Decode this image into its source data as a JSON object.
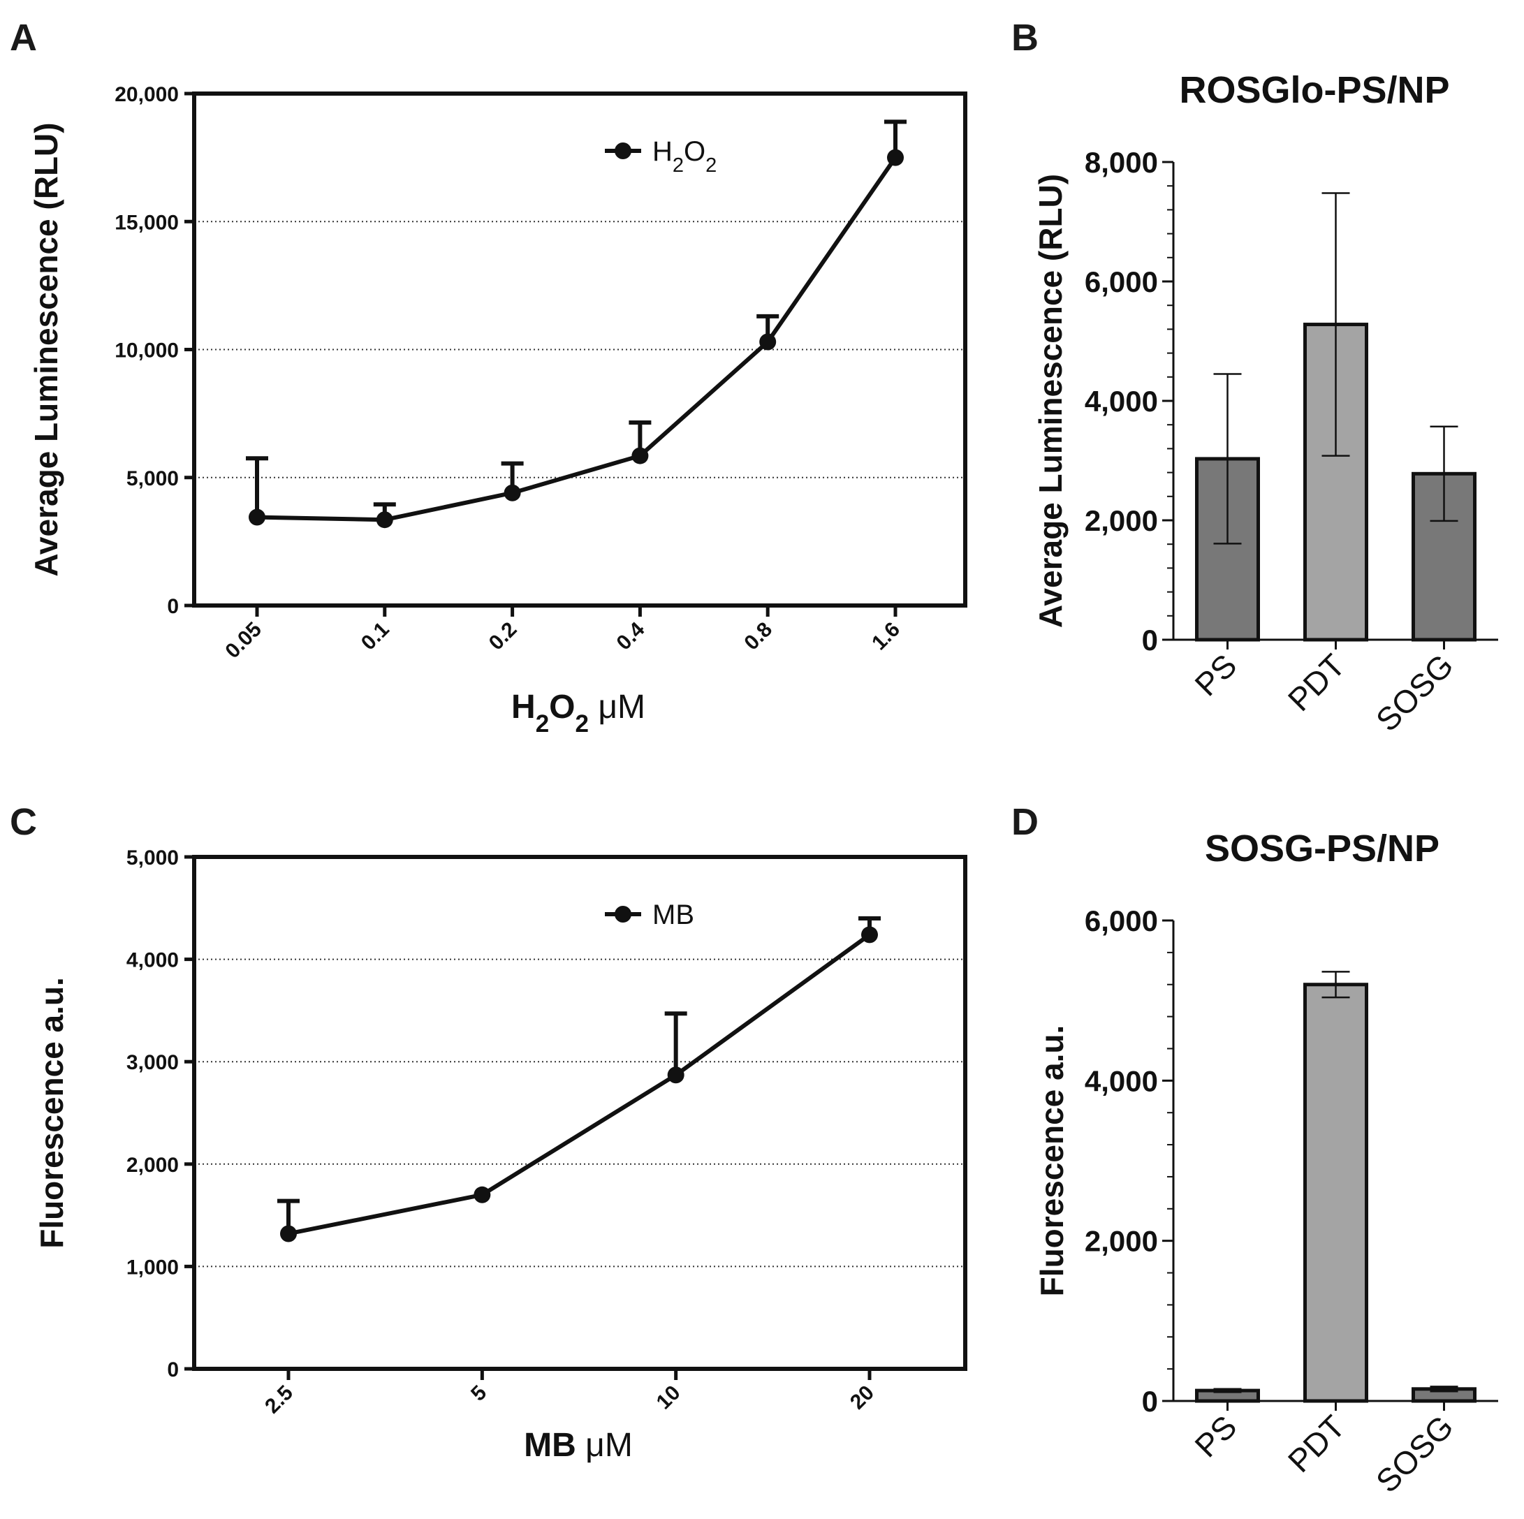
{
  "chart_data": [
    {
      "panel": "A",
      "type": "line",
      "title": "",
      "xlabel": {
        "main": "H",
        "sub1": "2",
        "mid": "O",
        "sub2": "2",
        "unit": " μM"
      },
      "ylabel": "Average Luminescence (RLU)",
      "categories": [
        "0.05",
        "0.1",
        "0.2",
        "0.4",
        "0.8",
        "1.6"
      ],
      "yticks": [
        "0",
        "5,000",
        "10,000",
        "15,000",
        "20,000"
      ],
      "ylim": [
        0,
        20000
      ],
      "grid_y": [
        5000,
        10000,
        15000
      ],
      "legend": {
        "main": "H",
        "sub1": "2",
        "mid": "O",
        "sub2": "2"
      },
      "series": [
        {
          "name": "H2O2",
          "values": [
            3450,
            3350,
            4400,
            5850,
            10300,
            17500
          ],
          "errors": [
            2300,
            600,
            1150,
            1300,
            1000,
            1400
          ]
        }
      ]
    },
    {
      "panel": "B",
      "type": "bar",
      "title": "ROSGlo-PS/NP",
      "xlabel": "",
      "ylabel": "Average Luminescence (RLU)",
      "categories": [
        "PS",
        "PDT",
        "SOSG"
      ],
      "values": [
        3030,
        5280,
        2780
      ],
      "errors": [
        1420,
        2200,
        790
      ],
      "yticks": [
        "0",
        "2,000",
        "4,000",
        "6,000",
        "8,000"
      ],
      "ylim": [
        0,
        8000
      ],
      "bar_colors": [
        "#787878",
        "#a4a4a4",
        "#787878"
      ]
    },
    {
      "panel": "C",
      "type": "line",
      "title": "",
      "xlabel": {
        "main": "MB",
        "unit": " μM"
      },
      "ylabel": "Fluorescence a.u.",
      "categories": [
        "2.5",
        "5",
        "10",
        "20"
      ],
      "yticks": [
        "0",
        "1,000",
        "2,000",
        "3,000",
        "4,000",
        "5,000"
      ],
      "ylim": [
        0,
        5000
      ],
      "grid_y": [
        1000,
        2000,
        3000,
        4000
      ],
      "legend": {
        "main": "MB"
      },
      "series": [
        {
          "name": "MB",
          "values": [
            1320,
            1700,
            2870,
            4240
          ],
          "errors": [
            320,
            0,
            600,
            160
          ]
        }
      ]
    },
    {
      "panel": "D",
      "type": "bar",
      "title": "SOSG-PS/NP",
      "xlabel": "",
      "ylabel": "Fluorescence a.u.",
      "categories": [
        "PS",
        "PDT",
        "SOSG"
      ],
      "values": [
        130,
        5200,
        150
      ],
      "errors": [
        20,
        160,
        30
      ],
      "yticks": [
        "0",
        "2,000",
        "4,000",
        "6,000"
      ],
      "ylim": [
        0,
        6000
      ],
      "bar_colors": [
        "#787878",
        "#a4a4a4",
        "#787878"
      ]
    }
  ]
}
